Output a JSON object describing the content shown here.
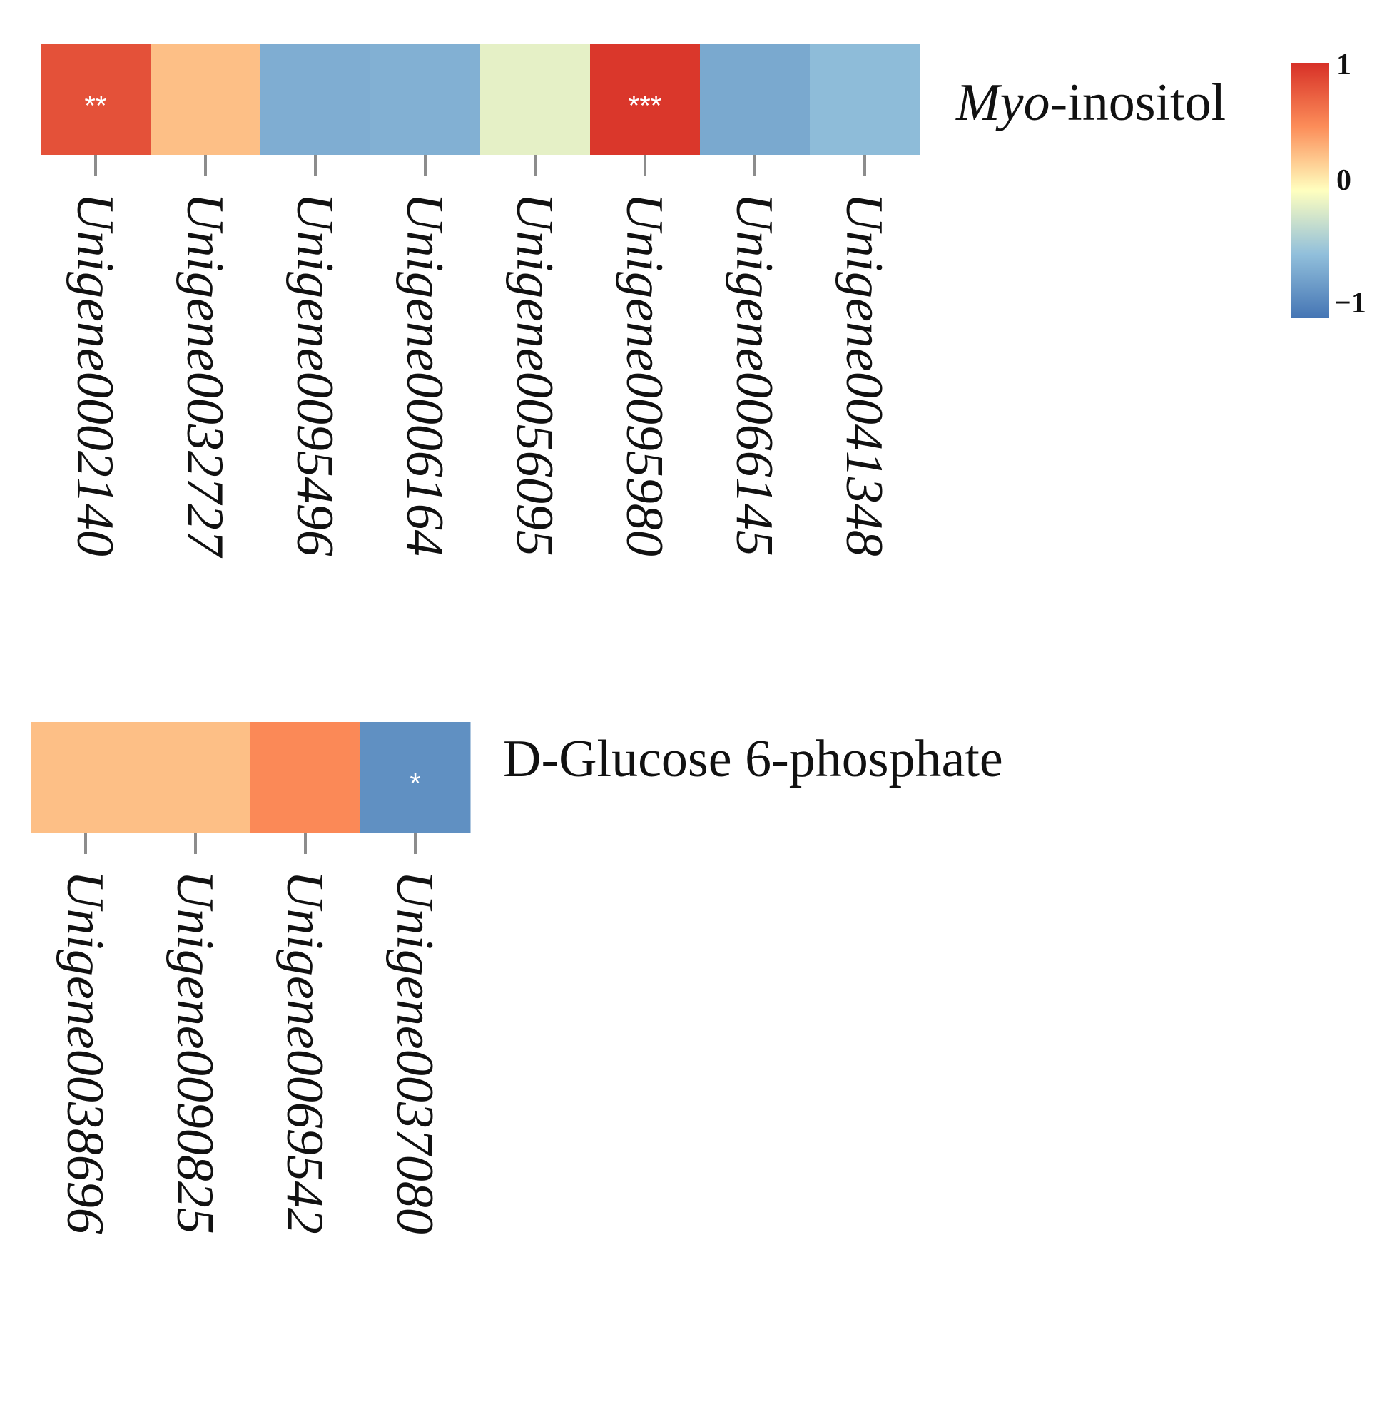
{
  "chart_data": [
    {
      "type": "heatmap",
      "title": "",
      "row_label": {
        "italic": "Myo",
        "rest": "-inositol"
      },
      "genes": [
        "Unigene0002140",
        "Unigene0032727",
        "Unigene0095496",
        "Unigene0006164",
        "Unigene0056095",
        "Unigene0095980",
        "Unigene0066145",
        "Unigene0041348"
      ],
      "values": [
        0.82,
        0.28,
        -0.62,
        -0.6,
        -0.12,
        0.96,
        -0.65,
        -0.52
      ],
      "significance": [
        "**",
        "",
        "",
        "",
        "",
        "***",
        "",
        ""
      ]
    },
    {
      "type": "heatmap",
      "title": "",
      "row_label": {
        "italic": "",
        "rest": "D-Glucose 6-phosphate"
      },
      "genes": [
        "Unigene0038696",
        "Unigene0090825",
        "Unigene0069542",
        "Unigene0037080"
      ],
      "values": [
        0.28,
        0.28,
        0.52,
        -0.82
      ],
      "significance": [
        "",
        "",
        "",
        "*"
      ]
    }
  ],
  "legend": {
    "ticks": [
      "1",
      "0",
      "−1"
    ],
    "range": [
      -1,
      1
    ],
    "colors": {
      "low": "#4575b4",
      "mid": "#ffffbf",
      "high": "#d73027"
    }
  }
}
